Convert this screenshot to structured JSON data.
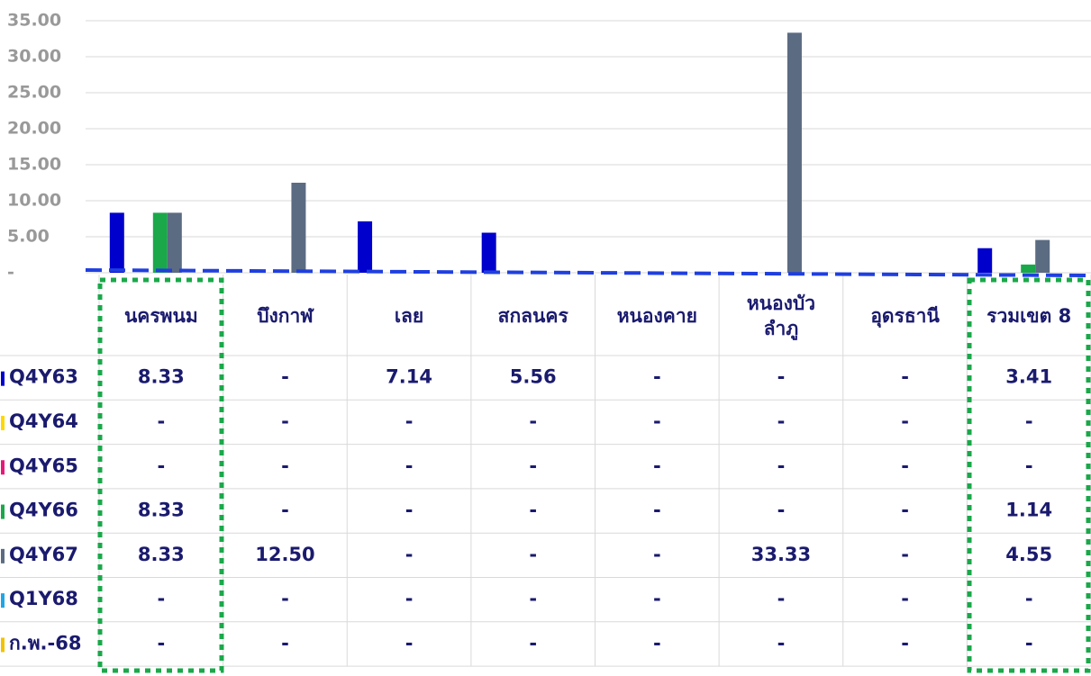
{
  "chart_data": {
    "type": "bar",
    "categories": [
      "นครพนม",
      "บึงกาฬ",
      "เลย",
      "สกลนคร",
      "หนองคาย",
      "หนองบัว\nลำภู",
      "อุดรธานี",
      "รวมเขต 8"
    ],
    "series": [
      {
        "name": "Q4Y63",
        "color": "#0000cd",
        "values": [
          8.33,
          0,
          7.14,
          5.56,
          0,
          0,
          0,
          3.41
        ],
        "value_labels": [
          "8.33",
          "-",
          "7.14",
          "5.56",
          "-",
          "-",
          "-",
          "3.41"
        ]
      },
      {
        "name": "Q4Y64",
        "color": "#ffd700",
        "values": [
          0,
          0,
          0,
          0,
          0,
          0,
          0,
          0
        ],
        "value_labels": [
          "-",
          "-",
          "-",
          "-",
          "-",
          "-",
          "-",
          "-"
        ]
      },
      {
        "name": "Q4Y65",
        "color": "#e6197a",
        "values": [
          0,
          0,
          0,
          0,
          0,
          0,
          0,
          0
        ],
        "value_labels": [
          "-",
          "-",
          "-",
          "-",
          "-",
          "-",
          "-",
          "-"
        ]
      },
      {
        "name": "Q4Y66",
        "color": "#1aa84a",
        "values": [
          8.33,
          0,
          0,
          0,
          0,
          0,
          0,
          1.14
        ],
        "value_labels": [
          "8.33",
          "-",
          "-",
          "-",
          "-",
          "-",
          "-",
          "1.14"
        ]
      },
      {
        "name": "Q4Y67",
        "color": "#5b6b82",
        "values": [
          8.33,
          12.5,
          0,
          0,
          0,
          33.33,
          0,
          4.55
        ],
        "value_labels": [
          "8.33",
          "12.50",
          "-",
          "-",
          "-",
          "33.33",
          "-",
          "4.55"
        ]
      },
      {
        "name": "Q1Y68",
        "color": "#1ea6e6",
        "values": [
          0,
          0,
          0,
          0,
          0,
          0,
          0,
          0
        ],
        "value_labels": [
          "-",
          "-",
          "-",
          "-",
          "-",
          "-",
          "-",
          "-"
        ]
      },
      {
        "name": "ก.พ.-68",
        "color": "#f2c200",
        "values": [
          0,
          0,
          0,
          0,
          0,
          0,
          0,
          0
        ],
        "value_labels": [
          "-",
          "-",
          "-",
          "-",
          "-",
          "-",
          "-",
          "-"
        ]
      }
    ],
    "ylim": [
      0,
      35
    ],
    "yticks": [
      {
        "value": 0,
        "label": "-"
      },
      {
        "value": 5,
        "label": "5.00"
      },
      {
        "value": 10,
        "label": "10.00"
      },
      {
        "value": 15,
        "label": "15.00"
      },
      {
        "value": 20,
        "label": "20.00"
      },
      {
        "value": 25,
        "label": "25.00"
      },
      {
        "value": 30,
        "label": "30.00"
      },
      {
        "value": 35,
        "label": "35.00"
      }
    ],
    "grid": true
  }
}
